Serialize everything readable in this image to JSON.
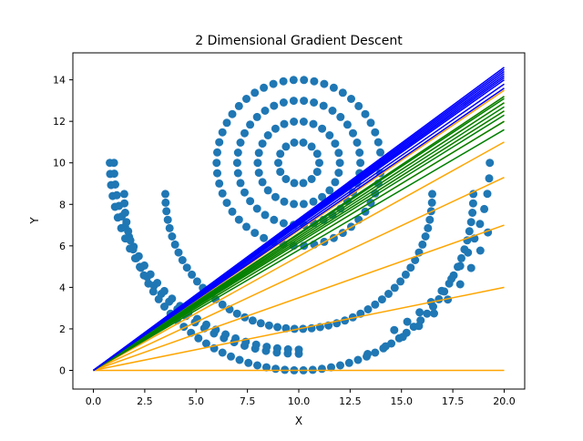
{
  "chart_data": {
    "type": "scatter",
    "title": "2 Dimensional Gradient Descent",
    "xlabel": "X",
    "ylabel": "Y",
    "xlim": [
      -1,
      21
    ],
    "ylim": [
      -0.9,
      15.3
    ],
    "xticks": [
      "0.0",
      "2.5",
      "5.0",
      "7.5",
      "10.0",
      "12.5",
      "15.0",
      "17.5",
      "20.0"
    ],
    "yticks": [
      "0",
      "2",
      "4",
      "6",
      "8",
      "10",
      "12",
      "14"
    ],
    "grid": false,
    "legend": "none",
    "colors": {
      "points": "#1f77b4",
      "early_fits": "#ffa500",
      "middle_fits": "#008000",
      "late_fits": "#0000ff"
    },
    "scatter_shapes": [
      {
        "name": "",
        "kind": "circle",
        "cx": 10,
        "cy": 10,
        "r": 1,
        "n": 14
      },
      {
        "name": "",
        "kind": "circle",
        "cx": 10,
        "cy": 10,
        "r": 2,
        "n": 26
      },
      {
        "name": "",
        "kind": "circle",
        "cx": 10,
        "cy": 10,
        "r": 3,
        "n": 38
      },
      {
        "name": "",
        "kind": "circle",
        "cx": 10,
        "cy": 10,
        "r": 4,
        "n": 50
      },
      {
        "name": "",
        "kind": "arc",
        "cx": 10,
        "cy": 10,
        "r": 9.2,
        "t0": 180,
        "t1": 270,
        "n": 28
      },
      {
        "name": "",
        "kind": "arc",
        "cx": 10,
        "cy": 10,
        "r": 9.0,
        "t0": 180,
        "t1": 270,
        "n": 28
      },
      {
        "name": "",
        "kind": "arc",
        "cx": 10,
        "cy": 8.5,
        "r": 8.5,
        "t0": 180,
        "t1": 360,
        "n": 60
      },
      {
        "name": "",
        "kind": "arc",
        "cx": 10,
        "cy": 8.5,
        "r": 6.5,
        "t0": 180,
        "t1": 360,
        "n": 50
      },
      {
        "name": "",
        "kind": "arc",
        "cx": 10,
        "cy": 10,
        "r": 9.3,
        "t0": 300,
        "t1": 360,
        "n": 14
      },
      {
        "name": "",
        "kind": "arc",
        "cx": 10,
        "cy": 10,
        "r": 9.8,
        "t0": 290,
        "t1": 340,
        "n": 10
      }
    ],
    "fit_lines": [
      {
        "color": "#ffa500",
        "slope": 0.0
      },
      {
        "color": "#ffa500",
        "slope": 0.2
      },
      {
        "color": "#ffa500",
        "slope": 0.35
      },
      {
        "color": "#ffa500",
        "slope": 0.465
      },
      {
        "color": "#ffa500",
        "slope": 0.55
      },
      {
        "color": "#ffa500",
        "slope": 0.6
      },
      {
        "color": "#ffa500",
        "slope": 0.625
      },
      {
        "color": "#ffa500",
        "slope": 0.645
      },
      {
        "color": "#ffa500",
        "slope": 0.66
      },
      {
        "color": "#ffa500",
        "slope": 0.675
      },
      {
        "color": "#008000",
        "slope": 0.58
      },
      {
        "color": "#008000",
        "slope": 0.6
      },
      {
        "color": "#008000",
        "slope": 0.615
      },
      {
        "color": "#008000",
        "slope": 0.625
      },
      {
        "color": "#008000",
        "slope": 0.635
      },
      {
        "color": "#008000",
        "slope": 0.645
      },
      {
        "color": "#008000",
        "slope": 0.655
      },
      {
        "color": "#008000",
        "slope": 0.66
      },
      {
        "color": "#0000ff",
        "slope": 0.68
      },
      {
        "color": "#0000ff",
        "slope": 0.69
      },
      {
        "color": "#0000ff",
        "slope": 0.7
      },
      {
        "color": "#0000ff",
        "slope": 0.705
      },
      {
        "color": "#0000ff",
        "slope": 0.71
      },
      {
        "color": "#0000ff",
        "slope": 0.715
      },
      {
        "color": "#0000ff",
        "slope": 0.72
      },
      {
        "color": "#0000ff",
        "slope": 0.725
      },
      {
        "color": "#0000ff",
        "slope": 0.73
      }
    ],
    "fit_line_x": [
      0,
      20
    ]
  }
}
